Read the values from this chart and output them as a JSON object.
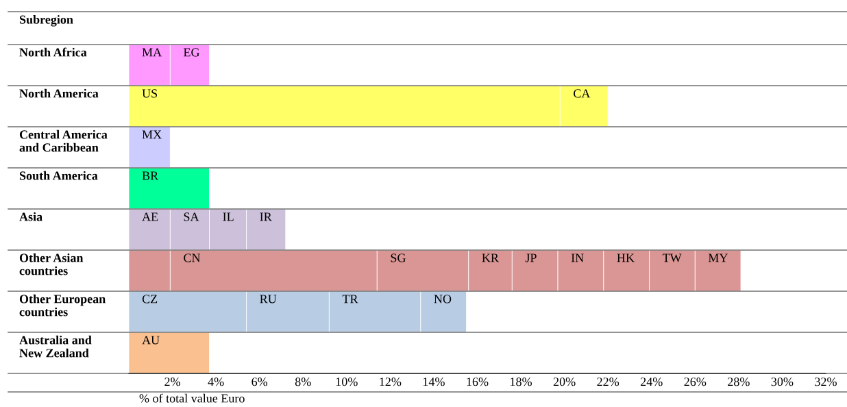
{
  "chart_data": {
    "type": "bar",
    "orientation": "horizontal",
    "stacked": true,
    "relative": false,
    "ylabel": "Subregion",
    "xlabel": "% of total value Euro",
    "categories": [
      "North Africa",
      "North America",
      "Central America and Caribbean",
      "South America",
      "Asia",
      "Other Asian countries",
      "Other European countries",
      "Australia and New Zealand"
    ],
    "series": [
      {
        "colors": [
          "#ff99ff",
          "#ffff66",
          "#ccccff",
          "#00ff99",
          "#ccc0da",
          "#da9694",
          "#b8cce4",
          "#fac090"
        ],
        "values": [
          1.9,
          19.8,
          1.9,
          3.7,
          1.9,
          1.9,
          5.4,
          3.7
        ],
        "value_labels": [
          "MA",
          "US",
          "MX",
          "BR",
          "AE",
          null,
          "CZ",
          "AU"
        ]
      },
      {
        "colors": [
          "#ff99ff",
          "#ffff66",
          null,
          null,
          "#ccc0da",
          "#da9694",
          "#b8cce4",
          null
        ],
        "values": [
          1.8,
          2.2,
          null,
          null,
          1.8,
          9.5,
          3.8,
          null
        ],
        "value_labels": [
          "EG",
          "CA",
          null,
          null,
          "SA",
          "CN",
          "RU",
          null
        ]
      },
      {
        "colors": [
          null,
          null,
          null,
          null,
          "#ccc0da",
          "#da9694",
          "#b8cce4",
          null
        ],
        "values": [
          null,
          null,
          null,
          null,
          1.7,
          4.2,
          4.2,
          null
        ],
        "value_labels": [
          null,
          null,
          null,
          null,
          "IL",
          "SG",
          "TR",
          null
        ]
      },
      {
        "colors": [
          null,
          null,
          null,
          null,
          "#ccc0da",
          "#da9694",
          "#b8cce4",
          null
        ],
        "values": [
          null,
          null,
          null,
          null,
          1.8,
          2.0,
          2.1,
          null
        ],
        "value_labels": [
          null,
          null,
          null,
          null,
          "IR",
          "KR",
          "NO",
          null
        ]
      },
      {
        "colors": [
          null,
          null,
          null,
          null,
          null,
          "#da9694",
          null,
          null
        ],
        "values": [
          null,
          null,
          null,
          null,
          null,
          2.1,
          null,
          null
        ],
        "value_labels": [
          null,
          null,
          null,
          null,
          null,
          "JP",
          null,
          null
        ]
      },
      {
        "colors": [
          null,
          null,
          null,
          null,
          null,
          "#da9694",
          null,
          null
        ],
        "values": [
          null,
          null,
          null,
          null,
          null,
          2.1,
          null,
          null
        ],
        "value_labels": [
          null,
          null,
          null,
          null,
          null,
          "IN",
          null,
          null
        ]
      },
      {
        "colors": [
          null,
          null,
          null,
          null,
          null,
          "#da9694",
          null,
          null
        ],
        "values": [
          null,
          null,
          null,
          null,
          null,
          2.1,
          null,
          null
        ],
        "value_labels": [
          null,
          null,
          null,
          null,
          null,
          "HK",
          null,
          null
        ]
      },
      {
        "colors": [
          null,
          null,
          null,
          null,
          null,
          "#da9694",
          null,
          null
        ],
        "values": [
          null,
          null,
          null,
          null,
          null,
          2.1,
          null,
          null
        ],
        "value_labels": [
          null,
          null,
          null,
          null,
          null,
          "TW",
          null,
          null
        ]
      },
      {
        "colors": [
          null,
          null,
          null,
          null,
          null,
          "#da9694",
          null,
          null
        ],
        "values": [
          null,
          null,
          null,
          null,
          null,
          2.1,
          null,
          null
        ],
        "value_labels": [
          null,
          null,
          null,
          null,
          null,
          "MY",
          null,
          null
        ]
      }
    ],
    "xlim": [
      0,
      32
    ],
    "xticks": [
      {
        "value": 2,
        "label": "2%"
      },
      {
        "value": 4,
        "label": "4%"
      },
      {
        "value": 6,
        "label": "6%"
      },
      {
        "value": 8,
        "label": "8%"
      },
      {
        "value": 10,
        "label": "10%"
      },
      {
        "value": 12,
        "label": "12%"
      },
      {
        "value": 14,
        "label": "14%"
      },
      {
        "value": 16,
        "label": "16%"
      },
      {
        "value": 18,
        "label": "18%"
      },
      {
        "value": 20,
        "label": "20%"
      },
      {
        "value": 22,
        "label": "22%"
      },
      {
        "value": 24,
        "label": "24%"
      },
      {
        "value": 26,
        "label": "26%"
      },
      {
        "value": 28,
        "label": "28%"
      },
      {
        "value": 30,
        "label": "30%"
      },
      {
        "value": 32,
        "label": "32%"
      }
    ],
    "grid": false,
    "legend": false
  }
}
